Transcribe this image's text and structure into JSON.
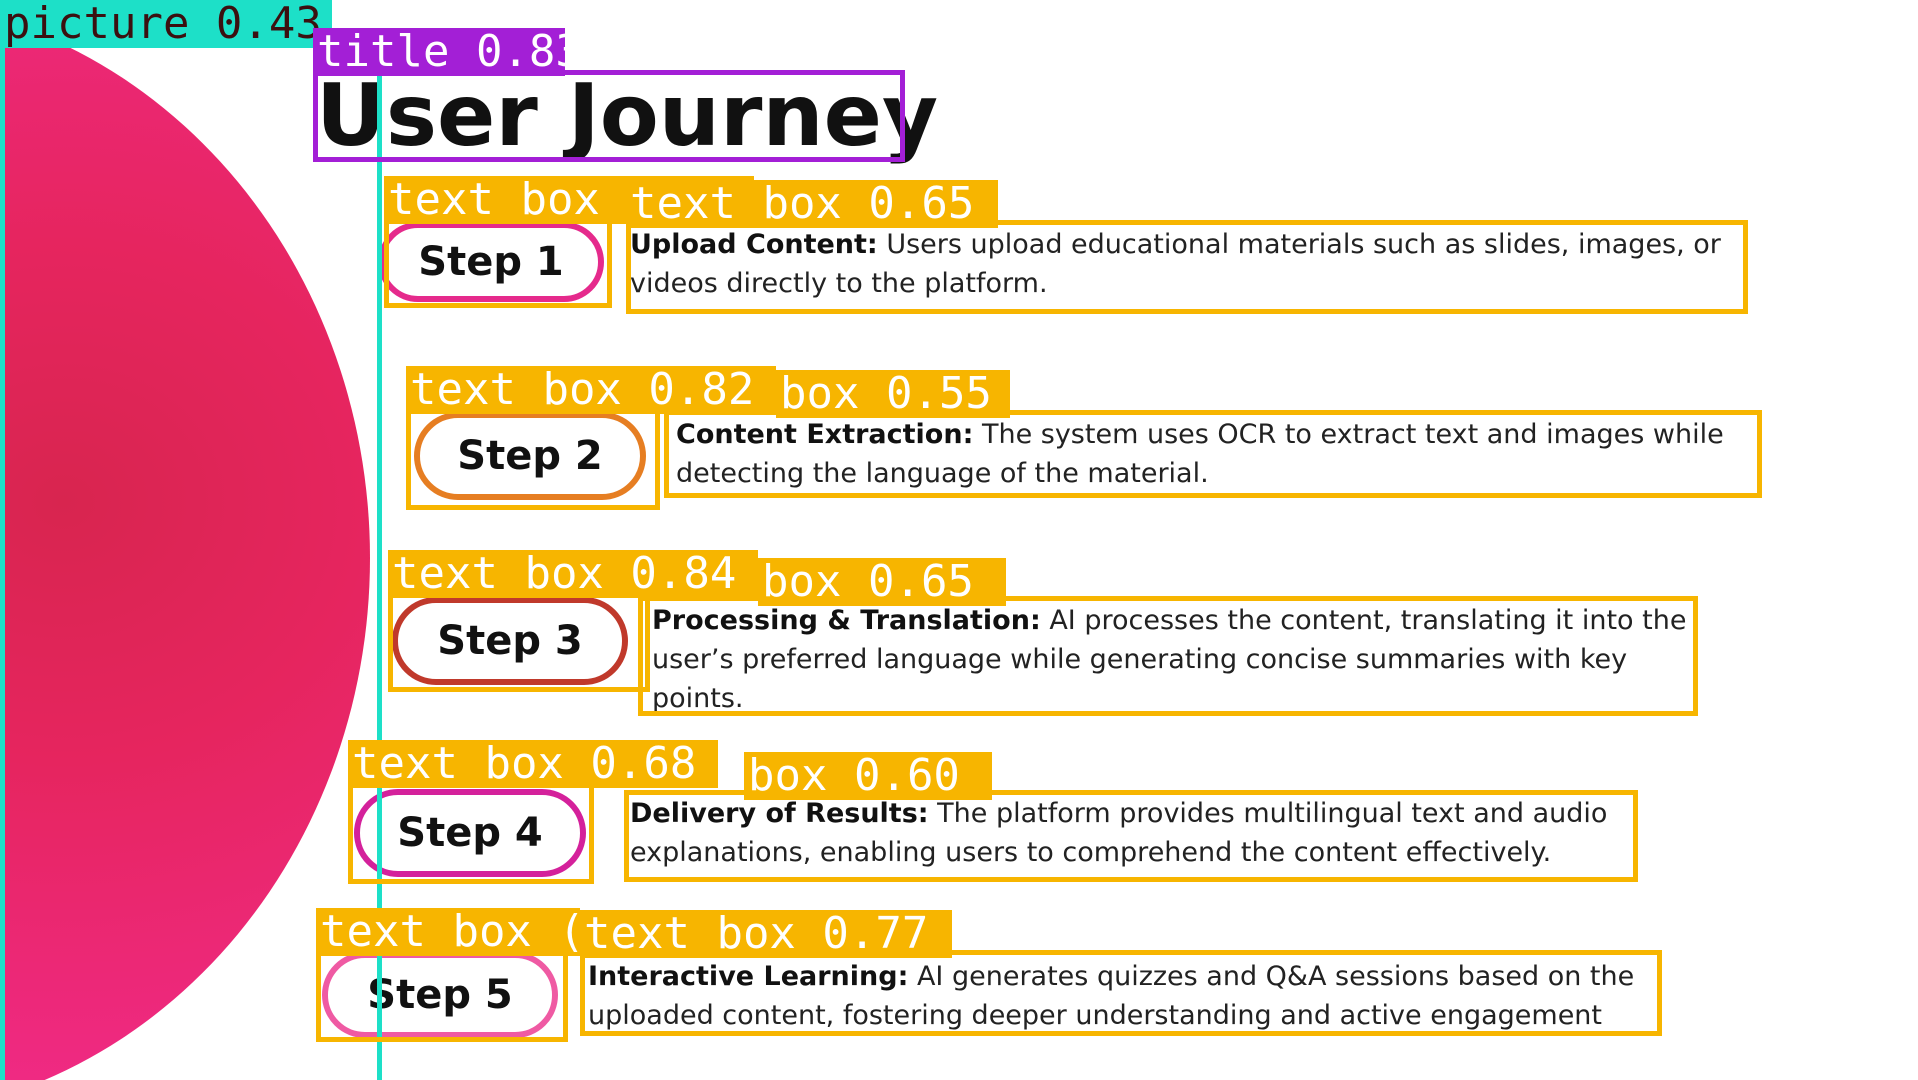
{
  "title": "User Journey",
  "detections": {
    "picture": "picture 0.43",
    "title": "title 0.83",
    "step1_pill": "text box 0.",
    "step1_desc": "text box 0.65",
    "step2_pill": "text box 0.82",
    "step2_desc": "box 0.55",
    "step3_pill": "text box 0.84",
    "step3_desc": "box 0.65",
    "step4_pill": "text box 0.68",
    "step4_desc": "box 0.60",
    "step5_pill": "text box (",
    "step5_desc": "text box 0.77"
  },
  "steps": [
    {
      "label": "Step 1",
      "heading": "Upload Content:",
      "text": " Users upload educational materials such as slides, images, or videos directly to the platform."
    },
    {
      "label": "Step 2",
      "heading": "Content Extraction:",
      "text": " The system uses OCR to extract text and images while detecting the language of the material."
    },
    {
      "label": "Step 3",
      "heading": "Processing & Translation:",
      "text": " AI processes the content, translating it into the user’s preferred language while generating concise summaries with key points."
    },
    {
      "label": "Step 4",
      "heading": "Delivery of Results:",
      "text": " The platform provides multilingual text and audio explanations, enabling users to comprehend the content effectively."
    },
    {
      "label": "Step 5",
      "heading": "Interactive Learning:",
      "text": " AI generates quizzes and Q&A sessions based on the uploaded content, fostering deeper understanding and active engagement"
    }
  ],
  "colors": {
    "overlay_text_box": "#f7b500",
    "overlay_title": "#a31fd6",
    "overlay_picture": "#1de0c8",
    "pink_disc": "#f02a86"
  }
}
